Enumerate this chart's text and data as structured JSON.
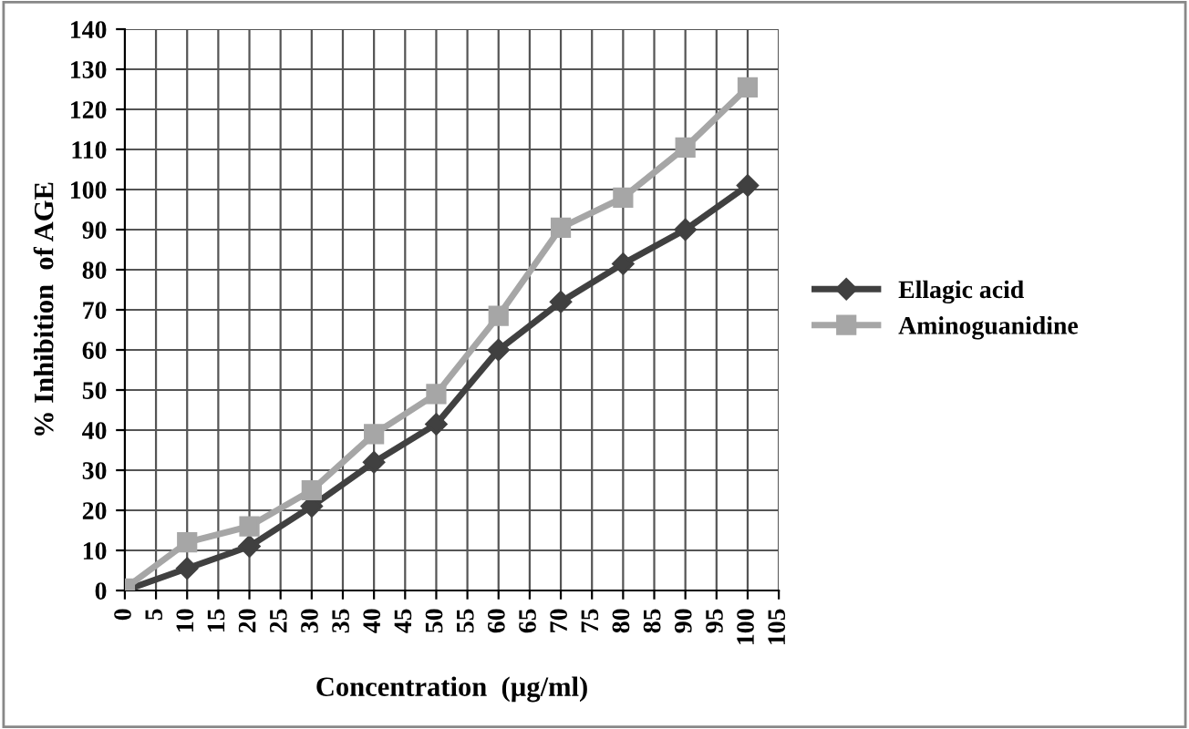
{
  "chart_data": {
    "type": "line",
    "xlabel": "Concentration  (µg/ml)",
    "ylabel": "% Inhibition  of AGE",
    "x": [
      0,
      10,
      20,
      30,
      40,
      50,
      60,
      70,
      80,
      90,
      100
    ],
    "series": [
      {
        "name": "Ellagic acid",
        "color": "#404040",
        "marker": "diamond",
        "values": [
          0,
          5.5,
          11,
          21,
          32,
          41.5,
          60,
          72,
          81.5,
          90,
          101
        ]
      },
      {
        "name": "Aminoguanidine",
        "color": "#a6a6a6",
        "marker": "square",
        "values": [
          0.5,
          12,
          16,
          25,
          39,
          49,
          68.5,
          90.5,
          98,
          110.5,
          125.5
        ]
      }
    ],
    "xlim": [
      0,
      105
    ],
    "xticks": [
      0,
      5,
      10,
      15,
      20,
      25,
      30,
      35,
      40,
      45,
      50,
      55,
      60,
      65,
      70,
      75,
      80,
      85,
      90,
      95,
      100,
      105
    ],
    "ylim": [
      0,
      140
    ],
    "yticks": [
      0,
      10,
      20,
      30,
      40,
      50,
      60,
      70,
      80,
      90,
      100,
      110,
      120,
      130,
      140
    ],
    "grid": true,
    "legend": "right",
    "line_style": "solid"
  }
}
